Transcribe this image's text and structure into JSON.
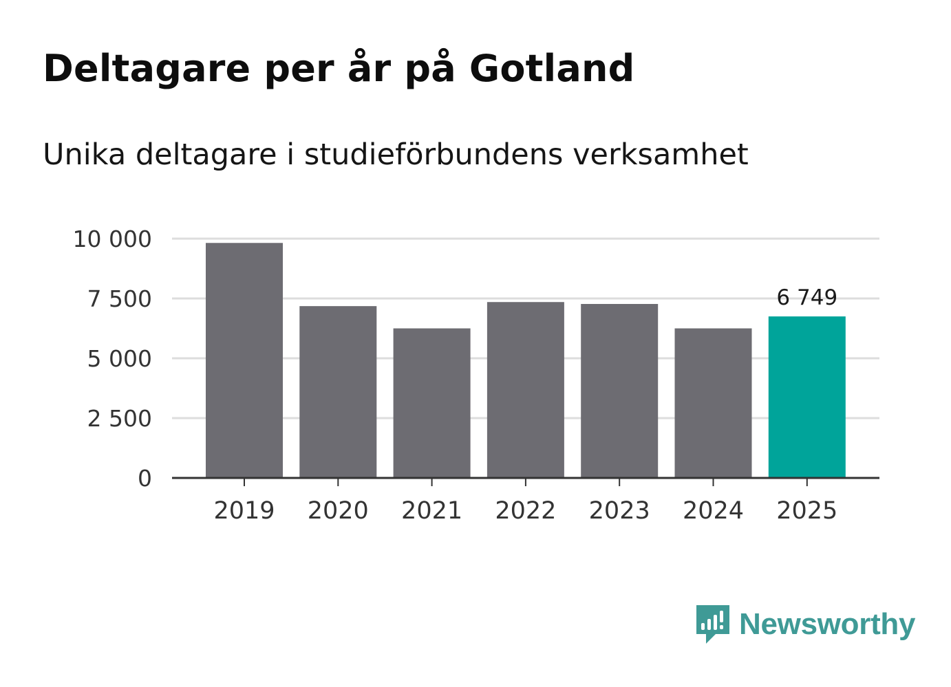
{
  "title": "Deltagare per år på Gotland",
  "subtitle": "Unika deltagare i studieförbundens verksamhet",
  "brand": {
    "name": "Newsworthy",
    "color": "#3f9a96"
  },
  "colors": {
    "bar": "#6d6c72",
    "highlight": "#00a49a",
    "grid": "#dddddd",
    "axis": "#333333"
  },
  "chart_data": {
    "type": "bar",
    "title": "Deltagare per år på Gotland",
    "subtitle": "Unika deltagare i studieförbundens verksamhet",
    "xlabel": "",
    "ylabel": "",
    "categories": [
      "2019",
      "2020",
      "2021",
      "2022",
      "2023",
      "2024",
      "2025"
    ],
    "values": [
      9820,
      7180,
      6250,
      7350,
      7270,
      6250,
      6749
    ],
    "highlight_index": 6,
    "data_labels": [
      {
        "index": 6,
        "text": "6 749"
      }
    ],
    "ylim": [
      0,
      10000
    ],
    "yticks": [
      0,
      2500,
      5000,
      7500,
      10000
    ],
    "ytick_labels": [
      "0",
      "2 500",
      "5 000",
      "7 500",
      "10 000"
    ],
    "grid": true
  }
}
